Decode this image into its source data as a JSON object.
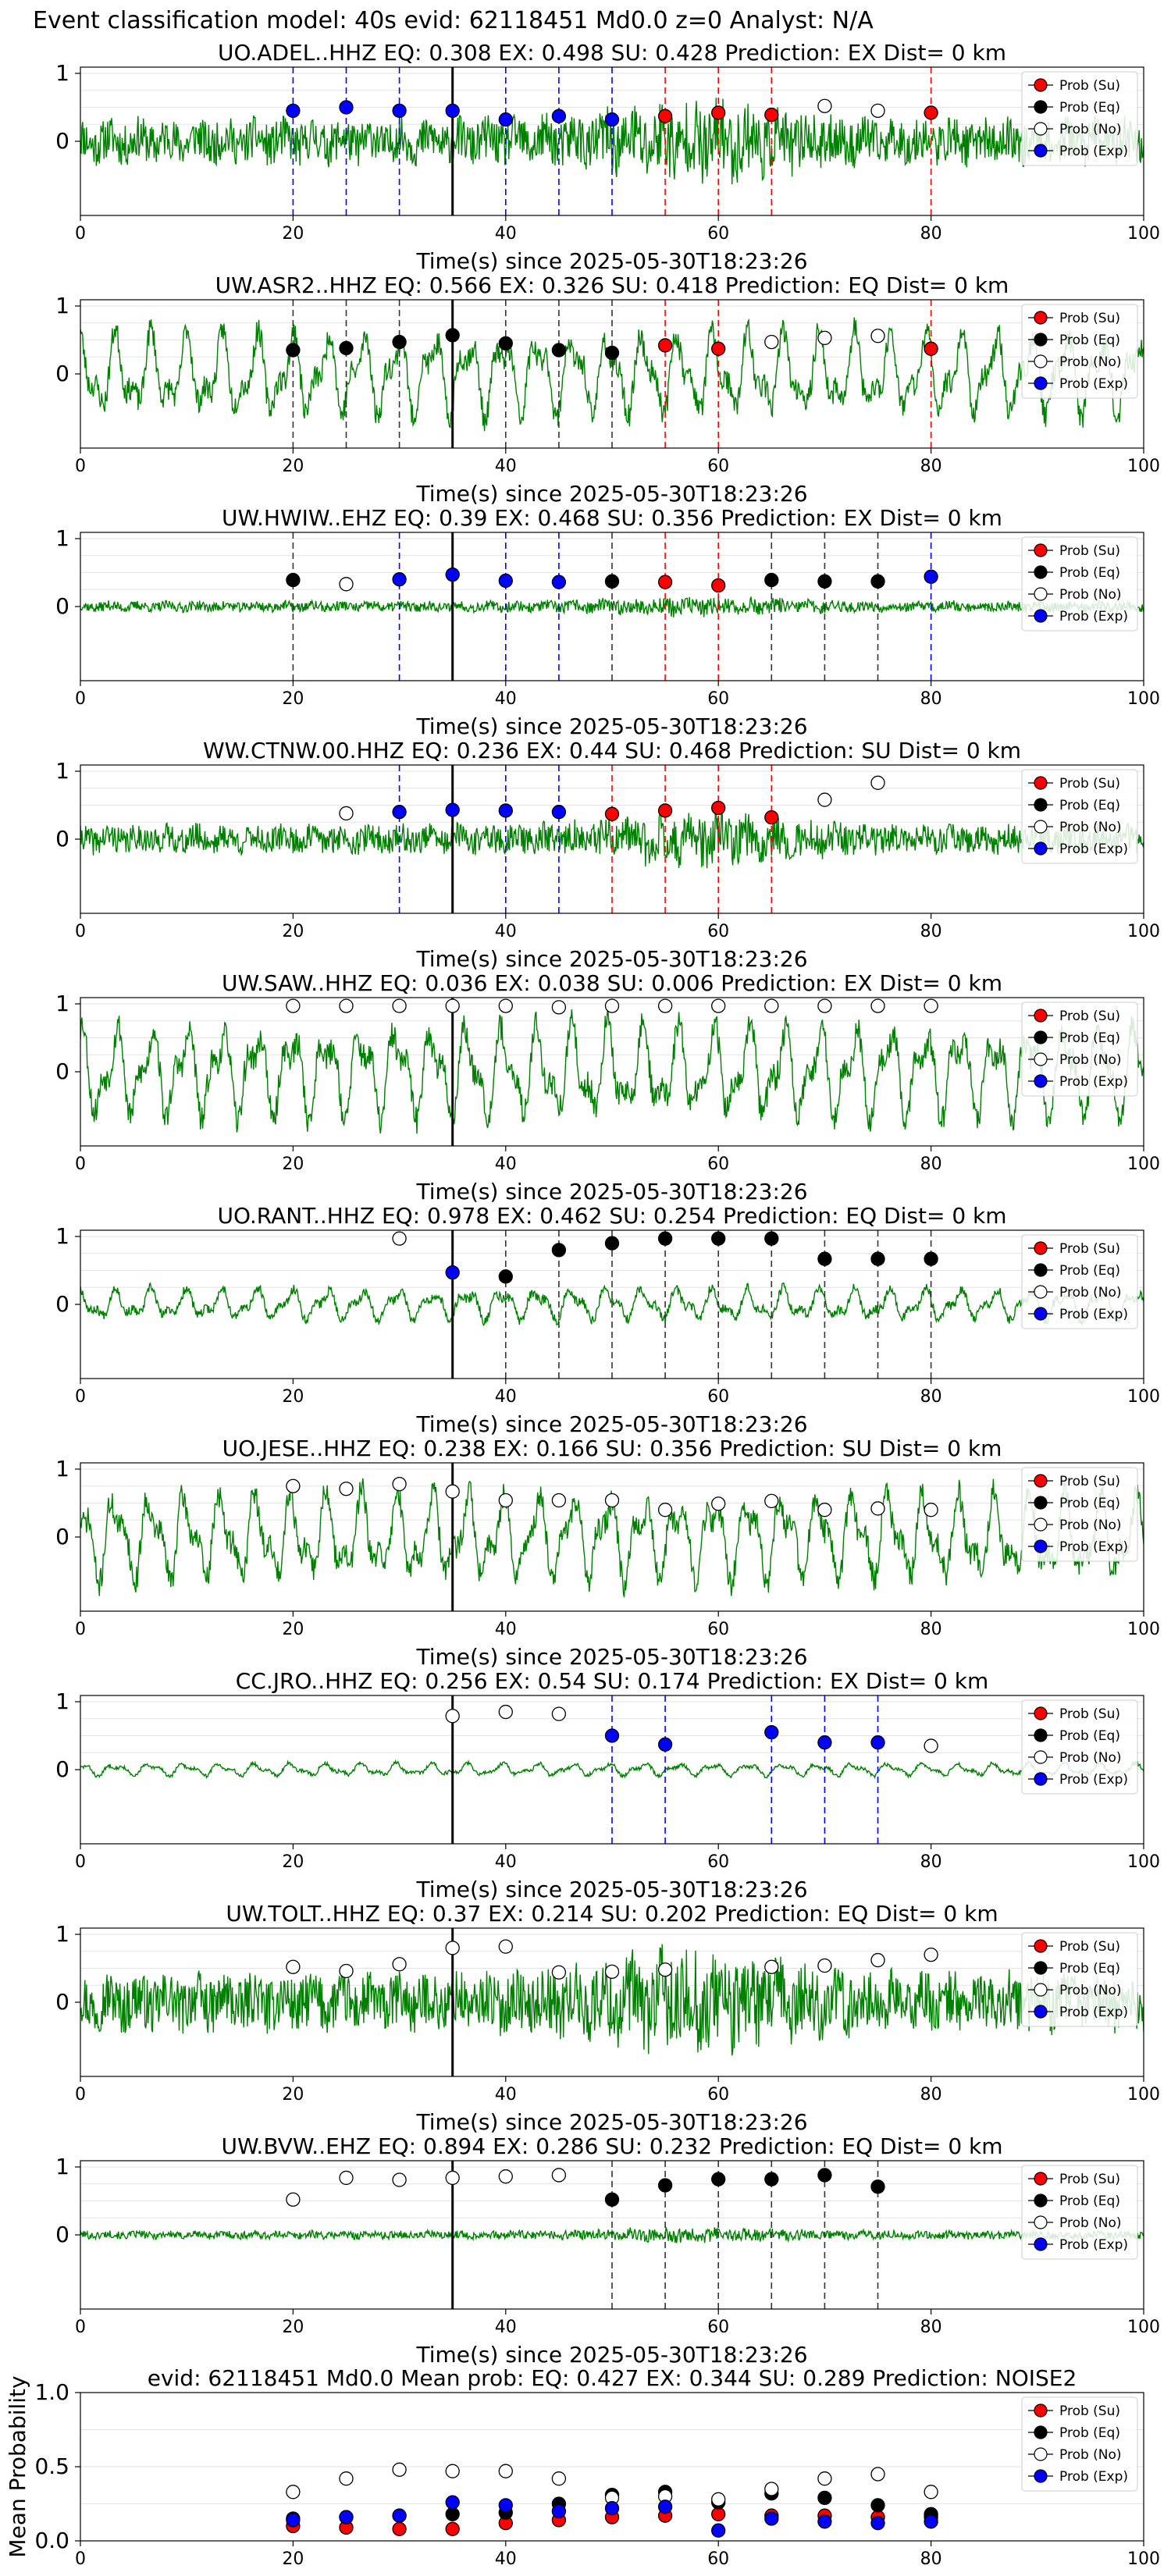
{
  "figure": {
    "suptitle": "Event classification model: 40s evid: 62118451 Md0.0 z=0 Analyst: N/A",
    "xlabel": "Time(s) since 2025-05-30T18:23:26",
    "legend": [
      "Prob (Su)",
      "Prob (Eq)",
      "Prob (No)",
      "Prob (Exp)"
    ],
    "colors": {
      "su": "#ff0000",
      "eq": "#000000",
      "no": "#ffffff",
      "exp": "#0000ff",
      "trace": "#008000"
    }
  },
  "chart_data": [
    {
      "type": "line",
      "title": "UO.ADEL..HHZ   EQ: 0.308  EX: 0.498  SU: 0.428   Prediction: EX    Dist= 0 km",
      "xlim": [
        0,
        100
      ],
      "xticks": [
        0,
        20,
        40,
        60,
        80,
        100
      ],
      "yticks": [
        0,
        1
      ],
      "amp": 0.55,
      "style": "noise",
      "seed": 11,
      "class_lines": [
        [
          "exp",
          20
        ],
        [
          "exp",
          25
        ],
        [
          "exp",
          30
        ],
        [
          "exp",
          35
        ],
        [
          "exp",
          40
        ],
        [
          "exp",
          45
        ],
        [
          "exp",
          50
        ],
        [
          "su",
          55
        ],
        [
          "su",
          60
        ],
        [
          "su",
          65
        ],
        [
          "su",
          80
        ]
      ],
      "points": [
        [
          "exp",
          20,
          0.45
        ],
        [
          "exp",
          25,
          0.5
        ],
        [
          "exp",
          30,
          0.45
        ],
        [
          "exp",
          35,
          0.45
        ],
        [
          "exp",
          40,
          0.32
        ],
        [
          "exp",
          45,
          0.37
        ],
        [
          "exp",
          50,
          0.32
        ],
        [
          "su",
          55,
          0.37
        ],
        [
          "su",
          60,
          0.42
        ],
        [
          "su",
          65,
          0.39
        ],
        [
          "no",
          70,
          0.52
        ],
        [
          "no",
          75,
          0.45
        ],
        [
          "su",
          80,
          0.42
        ]
      ]
    },
    {
      "type": "line",
      "title": "UW.ASR2..HHZ   EQ: 0.566  EX: 0.326  SU: 0.418   Prediction: EQ    Dist= 0 km",
      "xlim": [
        0,
        100
      ],
      "xticks": [
        0,
        20,
        40,
        60,
        80,
        100
      ],
      "yticks": [
        0,
        1
      ],
      "amp": 0.8,
      "style": "wave",
      "seed": 23,
      "class_lines": [
        [
          "eq",
          20
        ],
        [
          "eq",
          25
        ],
        [
          "eq",
          30
        ],
        [
          "eq",
          35
        ],
        [
          "eq",
          40
        ],
        [
          "eq",
          45
        ],
        [
          "eq",
          50
        ],
        [
          "su",
          55
        ],
        [
          "su",
          60
        ],
        [
          "su",
          80
        ]
      ],
      "points": [
        [
          "eq",
          20,
          0.35
        ],
        [
          "eq",
          25,
          0.38
        ],
        [
          "eq",
          30,
          0.47
        ],
        [
          "eq",
          35,
          0.57
        ],
        [
          "eq",
          40,
          0.45
        ],
        [
          "eq",
          45,
          0.35
        ],
        [
          "eq",
          50,
          0.31
        ],
        [
          "su",
          55,
          0.42
        ],
        [
          "su",
          60,
          0.37
        ],
        [
          "no",
          65,
          0.47
        ],
        [
          "no",
          70,
          0.53
        ],
        [
          "no",
          75,
          0.56
        ],
        [
          "su",
          80,
          0.37
        ]
      ]
    },
    {
      "type": "line",
      "title": "UW.HWIW..EHZ   EQ: 0.39  EX: 0.468  SU: 0.356   Prediction: EX    Dist= 0 km",
      "xlim": [
        0,
        100
      ],
      "xticks": [
        0,
        20,
        40,
        60,
        80,
        100
      ],
      "yticks": [
        0,
        1
      ],
      "amp": 0.13,
      "style": "noise",
      "seed": 37,
      "class_lines": [
        [
          "eq",
          20
        ],
        [
          "exp",
          30
        ],
        [
          "exp",
          35
        ],
        [
          "exp",
          40
        ],
        [
          "exp",
          45
        ],
        [
          "eq",
          50
        ],
        [
          "su",
          55
        ],
        [
          "su",
          60
        ],
        [
          "eq",
          65
        ],
        [
          "eq",
          70
        ],
        [
          "eq",
          75
        ],
        [
          "exp",
          80
        ]
      ],
      "points": [
        [
          "eq",
          20,
          0.39
        ],
        [
          "no",
          25,
          0.33
        ],
        [
          "exp",
          30,
          0.4
        ],
        [
          "exp",
          35,
          0.47
        ],
        [
          "exp",
          40,
          0.38
        ],
        [
          "exp",
          45,
          0.36
        ],
        [
          "eq",
          50,
          0.37
        ],
        [
          "su",
          55,
          0.36
        ],
        [
          "su",
          60,
          0.31
        ],
        [
          "eq",
          65,
          0.39
        ],
        [
          "eq",
          70,
          0.37
        ],
        [
          "eq",
          75,
          0.37
        ],
        [
          "exp",
          80,
          0.44
        ]
      ]
    },
    {
      "type": "line",
      "title": "WW.CTNW.00.HHZ   EQ: 0.236  EX: 0.44  SU: 0.468   Prediction: SU    Dist= 0 km",
      "xlim": [
        0,
        100
      ],
      "xticks": [
        0,
        20,
        40,
        60,
        80,
        100
      ],
      "yticks": [
        0,
        1
      ],
      "amp": 0.35,
      "style": "noise",
      "seed": 41,
      "class_lines": [
        [
          "exp",
          30
        ],
        [
          "exp",
          35
        ],
        [
          "exp",
          40
        ],
        [
          "exp",
          45
        ],
        [
          "su",
          50
        ],
        [
          "su",
          55
        ],
        [
          "su",
          60
        ],
        [
          "su",
          65
        ]
      ],
      "points": [
        [
          "no",
          25,
          0.38
        ],
        [
          "exp",
          30,
          0.4
        ],
        [
          "exp",
          35,
          0.43
        ],
        [
          "exp",
          40,
          0.42
        ],
        [
          "exp",
          45,
          0.4
        ],
        [
          "su",
          50,
          0.37
        ],
        [
          "su",
          55,
          0.42
        ],
        [
          "su",
          60,
          0.46
        ],
        [
          "su",
          65,
          0.32
        ],
        [
          "no",
          70,
          0.58
        ],
        [
          "no",
          75,
          0.83
        ]
      ]
    },
    {
      "type": "line",
      "title": "UW.SAW..HHZ   EQ: 0.036  EX: 0.038  SU: 0.006   Prediction: EX    Dist= 0 km",
      "xlim": [
        0,
        100
      ],
      "xticks": [
        0,
        20,
        40,
        60,
        80,
        100
      ],
      "yticks": [
        0,
        1
      ],
      "amp": 0.9,
      "style": "wave",
      "seed": 53,
      "class_lines": [
        [
          "eq",
          35
        ]
      ],
      "points": [
        [
          "no",
          20,
          0.97
        ],
        [
          "no",
          25,
          0.97
        ],
        [
          "no",
          30,
          0.97
        ],
        [
          "no",
          35,
          0.97
        ],
        [
          "no",
          40,
          0.97
        ],
        [
          "no",
          45,
          0.95
        ],
        [
          "no",
          50,
          0.97
        ],
        [
          "no",
          55,
          0.97
        ],
        [
          "no",
          60,
          0.97
        ],
        [
          "no",
          65,
          0.97
        ],
        [
          "no",
          70,
          0.97
        ],
        [
          "no",
          75,
          0.97
        ],
        [
          "no",
          80,
          0.97
        ]
      ]
    },
    {
      "type": "line",
      "title": "UO.RANT..HHZ   EQ: 0.978  EX: 0.462  SU: 0.254   Prediction: EQ    Dist= 0 km",
      "xlim": [
        0,
        100
      ],
      "xticks": [
        0,
        20,
        40,
        60,
        80,
        100
      ],
      "yticks": [
        0,
        1
      ],
      "amp": 0.3,
      "style": "wave",
      "seed": 67,
      "class_lines": [
        [
          "eq",
          35
        ],
        [
          "eq",
          40
        ],
        [
          "eq",
          45
        ],
        [
          "eq",
          50
        ],
        [
          "eq",
          55
        ],
        [
          "eq",
          60
        ],
        [
          "eq",
          65
        ],
        [
          "eq",
          70
        ],
        [
          "eq",
          75
        ],
        [
          "eq",
          80
        ]
      ],
      "points": [
        [
          "no",
          30,
          0.97
        ],
        [
          "exp",
          35,
          0.47
        ],
        [
          "eq",
          40,
          0.41
        ],
        [
          "eq",
          45,
          0.8
        ],
        [
          "eq",
          50,
          0.9
        ],
        [
          "eq",
          55,
          0.97
        ],
        [
          "eq",
          60,
          0.97
        ],
        [
          "eq",
          65,
          0.97
        ],
        [
          "eq",
          70,
          0.67
        ],
        [
          "eq",
          75,
          0.67
        ],
        [
          "eq",
          80,
          0.67
        ]
      ]
    },
    {
      "type": "line",
      "title": "UO.JESE..HHZ   EQ: 0.238  EX: 0.166  SU: 0.356   Prediction: SU    Dist= 0 km",
      "xlim": [
        0,
        100
      ],
      "xticks": [
        0,
        20,
        40,
        60,
        80,
        100
      ],
      "yticks": [
        0,
        1
      ],
      "amp": 0.85,
      "style": "wave",
      "seed": 71,
      "class_lines": [
        [
          "eq",
          35
        ]
      ],
      "points": [
        [
          "no",
          20,
          0.75
        ],
        [
          "no",
          25,
          0.71
        ],
        [
          "no",
          30,
          0.78
        ],
        [
          "no",
          35,
          0.67
        ],
        [
          "no",
          40,
          0.54
        ],
        [
          "no",
          45,
          0.54
        ],
        [
          "no",
          50,
          0.54
        ],
        [
          "no",
          55,
          0.4
        ],
        [
          "no",
          60,
          0.49
        ],
        [
          "no",
          65,
          0.53
        ],
        [
          "no",
          70,
          0.4
        ],
        [
          "no",
          75,
          0.42
        ],
        [
          "no",
          80,
          0.4
        ]
      ]
    },
    {
      "type": "line",
      "title": "CC.JRO..HHZ   EQ: 0.256  EX: 0.54  SU: 0.174   Prediction: EX    Dist= 0 km",
      "xlim": [
        0,
        100
      ],
      "xticks": [
        0,
        20,
        40,
        60,
        80,
        100
      ],
      "yticks": [
        0,
        1
      ],
      "amp": 0.12,
      "style": "wave",
      "seed": 83,
      "class_lines": [
        [
          "eq",
          35
        ],
        [
          "exp",
          50
        ],
        [
          "exp",
          55
        ],
        [
          "exp",
          65
        ],
        [
          "exp",
          70
        ],
        [
          "exp",
          75
        ]
      ],
      "points": [
        [
          "no",
          35,
          0.79
        ],
        [
          "no",
          40,
          0.85
        ],
        [
          "no",
          45,
          0.82
        ],
        [
          "exp",
          50,
          0.5
        ],
        [
          "exp",
          55,
          0.37
        ],
        [
          "exp",
          65,
          0.55
        ],
        [
          "exp",
          70,
          0.4
        ],
        [
          "exp",
          75,
          0.4
        ],
        [
          "no",
          80,
          0.35
        ]
      ]
    },
    {
      "type": "line",
      "title": "UW.TOLT..HHZ   EQ: 0.37  EX: 0.214  SU: 0.202   Prediction: EQ    Dist= 0 km",
      "xlim": [
        0,
        100
      ],
      "xticks": [
        0,
        20,
        40,
        60,
        80,
        100
      ],
      "yticks": [
        0,
        1
      ],
      "amp": 0.7,
      "style": "noise",
      "seed": 97,
      "class_lines": [
        [
          "eq",
          35
        ]
      ],
      "points": [
        [
          "no",
          20,
          0.52
        ],
        [
          "no",
          25,
          0.46
        ],
        [
          "no",
          30,
          0.56
        ],
        [
          "no",
          35,
          0.8
        ],
        [
          "no",
          40,
          0.82
        ],
        [
          "no",
          45,
          0.44
        ],
        [
          "no",
          50,
          0.45
        ],
        [
          "no",
          55,
          0.48
        ],
        [
          "no",
          65,
          0.52
        ],
        [
          "no",
          70,
          0.54
        ],
        [
          "no",
          75,
          0.62
        ],
        [
          "no",
          80,
          0.7
        ]
      ]
    },
    {
      "type": "line",
      "title": "UW.BVW..EHZ   EQ: 0.894  EX: 0.286  SU: 0.232   Prediction: EQ    Dist= 0 km",
      "xlim": [
        0,
        100
      ],
      "xticks": [
        0,
        20,
        40,
        60,
        80,
        100
      ],
      "yticks": [
        0,
        1
      ],
      "amp": 0.1,
      "style": "noise",
      "seed": 101,
      "class_lines": [
        [
          "eq",
          35
        ],
        [
          "eq",
          50
        ],
        [
          "eq",
          55
        ],
        [
          "eq",
          60
        ],
        [
          "eq",
          65
        ],
        [
          "eq",
          70
        ],
        [
          "eq",
          75
        ]
      ],
      "points": [
        [
          "no",
          20,
          0.52
        ],
        [
          "no",
          25,
          0.84
        ],
        [
          "no",
          30,
          0.81
        ],
        [
          "no",
          35,
          0.84
        ],
        [
          "no",
          40,
          0.86
        ],
        [
          "no",
          45,
          0.88
        ],
        [
          "eq",
          50,
          0.52
        ],
        [
          "eq",
          55,
          0.73
        ],
        [
          "eq",
          60,
          0.82
        ],
        [
          "eq",
          65,
          0.82
        ],
        [
          "eq",
          70,
          0.88
        ],
        [
          "eq",
          75,
          0.71
        ]
      ]
    },
    {
      "type": "scatter",
      "title": "evid: 62118451  Md0.0   Mean prob:   EQ: 0.427  EX: 0.344  SU: 0.289   Prediction: NOISE2",
      "ylabel": "Mean Probability",
      "xlim": [
        0,
        100
      ],
      "ylim": [
        0,
        1
      ],
      "xticks": [
        0,
        20,
        40,
        60,
        80,
        100
      ],
      "yticks": [
        0.0,
        0.5,
        1.0
      ],
      "series": [
        {
          "name": "Prob (Su)",
          "cls": "su",
          "x": [
            20,
            25,
            30,
            35,
            40,
            45,
            50,
            55,
            60,
            65,
            70,
            75,
            80
          ],
          "y": [
            0.1,
            0.09,
            0.08,
            0.08,
            0.12,
            0.14,
            0.16,
            0.17,
            0.18,
            0.17,
            0.17,
            0.16,
            0.16
          ]
        },
        {
          "name": "Prob (Eq)",
          "cls": "eq",
          "x": [
            20,
            25,
            30,
            35,
            40,
            45,
            50,
            55,
            60,
            65,
            70,
            75,
            80
          ],
          "y": [
            0.15,
            0.16,
            0.17,
            0.18,
            0.19,
            0.25,
            0.31,
            0.33,
            0.26,
            0.32,
            0.29,
            0.24,
            0.18
          ]
        },
        {
          "name": "Prob (No)",
          "cls": "no",
          "x": [
            20,
            25,
            30,
            35,
            40,
            45,
            50,
            55,
            60,
            65,
            70,
            75,
            80
          ],
          "y": [
            0.33,
            0.42,
            0.48,
            0.47,
            0.47,
            0.42,
            0.29,
            0.3,
            0.28,
            0.35,
            0.42,
            0.45,
            0.33
          ]
        },
        {
          "name": "Prob (Exp)",
          "cls": "exp",
          "x": [
            20,
            25,
            30,
            35,
            40,
            45,
            50,
            55,
            60,
            65,
            70,
            75,
            80
          ],
          "y": [
            0.14,
            0.16,
            0.17,
            0.26,
            0.24,
            0.2,
            0.22,
            0.23,
            0.07,
            0.15,
            0.13,
            0.12,
            0.13
          ]
        }
      ]
    }
  ]
}
